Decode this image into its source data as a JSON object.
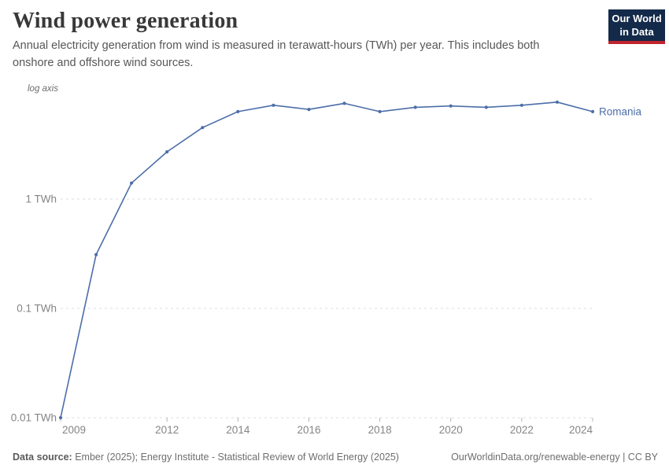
{
  "header": {
    "title": "Wind power generation",
    "subtitle": "Annual electricity generation from wind is measured in terawatt-hours (TWh) per year. This includes both onshore and offshore wind sources."
  },
  "logo": {
    "line1": "Our World",
    "line2": "in Data",
    "bg_color": "#142a4a",
    "bar_color": "#c1242d"
  },
  "chart_data": {
    "type": "line",
    "title": "Wind power generation",
    "scale_note": "log axis",
    "y_scale": "log",
    "xlabel": "",
    "ylabel": "TWh",
    "ylim": [
      0.01,
      9
    ],
    "xlim": [
      2009,
      2024
    ],
    "grid": "horizontal-dashed",
    "legend_position": "end-of-line",
    "x": [
      2009,
      2010,
      2011,
      2012,
      2013,
      2014,
      2015,
      2016,
      2017,
      2018,
      2019,
      2020,
      2021,
      2022,
      2023,
      2024
    ],
    "series": [
      {
        "name": "Romania",
        "color": "#4c6ea8",
        "values": [
          0.01,
          0.31,
          1.4,
          2.7,
          4.5,
          6.3,
          7.2,
          6.6,
          7.5,
          6.3,
          6.9,
          7.1,
          6.9,
          7.2,
          7.7,
          6.3
        ]
      }
    ],
    "y_ticks": [
      {
        "value": 0.01,
        "label": "0.01 TWh"
      },
      {
        "value": 0.1,
        "label": "0.1 TWh"
      },
      {
        "value": 1,
        "label": "1 TWh"
      }
    ],
    "x_ticks": [
      2009,
      2012,
      2014,
      2016,
      2018,
      2020,
      2022,
      2024
    ]
  },
  "footer": {
    "source_label": "Data source:",
    "source_text": "Ember (2025); Energy Institute - Statistical Review of World Energy (2025)",
    "credit": "OurWorldinData.org/renewable-energy | CC BY"
  }
}
